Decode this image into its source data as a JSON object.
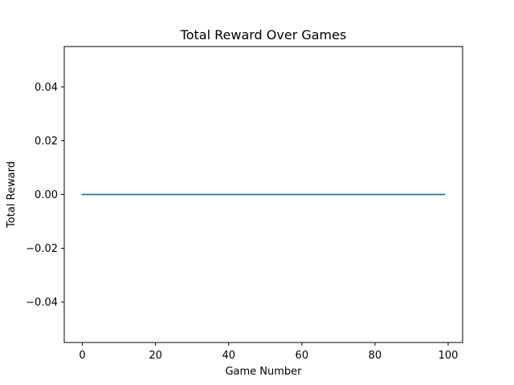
{
  "chart_data": {
    "type": "line",
    "title": "Total Reward Over Games",
    "xlabel": "Game Number",
    "ylabel": "Total Reward",
    "xlim": [
      -4.95,
      103.95
    ],
    "ylim": [
      -0.055,
      0.055
    ],
    "xticks": [
      0,
      20,
      40,
      60,
      80,
      100
    ],
    "xtick_labels": [
      "0",
      "20",
      "40",
      "60",
      "80",
      "100"
    ],
    "yticks": [
      -0.04,
      -0.02,
      0.0,
      0.02,
      0.04
    ],
    "ytick_labels": [
      "−0.04",
      "−0.02",
      "0.00",
      "0.02",
      "0.04"
    ],
    "grid": false,
    "legend": "none",
    "series": [
      {
        "color": "#1f77b4",
        "x_start": 0,
        "x_end": 99,
        "x_step": 1,
        "y_constant": 0
      }
    ]
  }
}
